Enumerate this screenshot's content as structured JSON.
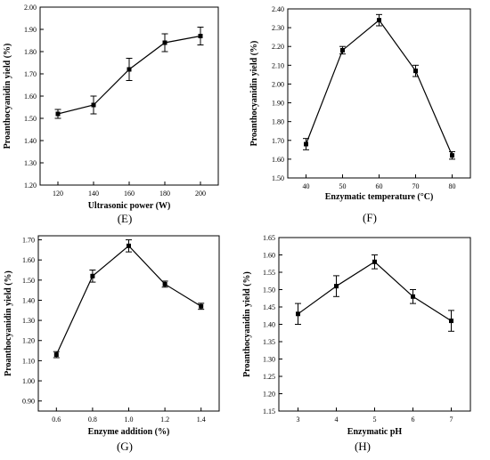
{
  "chart_data": [
    {
      "type": "line",
      "panel_label": "(E)",
      "xlabel": "Ultrasonic power (W)",
      "ylabel": "Proanthocyanidin yield (%)",
      "x": [
        120,
        140,
        160,
        180,
        200
      ],
      "y": [
        1.52,
        1.56,
        1.72,
        1.84,
        1.87
      ],
      "error": [
        0.02,
        0.04,
        0.05,
        0.04,
        0.04
      ],
      "xlim": [
        110,
        210
      ],
      "ylim": [
        1.2,
        2.0
      ],
      "x_ticks": [
        120,
        140,
        160,
        180,
        200
      ],
      "y_ticks": [
        1.2,
        1.3,
        1.4,
        1.5,
        1.6,
        1.7,
        1.8,
        1.9,
        2.0
      ],
      "grid": false,
      "marker": "square"
    },
    {
      "type": "line",
      "panel_label": "(F)",
      "xlabel": "Enzymatic temperature (°C)",
      "ylabel": "Proanthocyanidin yield (%)",
      "x": [
        40,
        50,
        60,
        70,
        80
      ],
      "y": [
        1.68,
        2.18,
        2.34,
        2.07,
        1.62
      ],
      "error": [
        0.03,
        0.02,
        0.03,
        0.03,
        0.02
      ],
      "xlim": [
        35,
        85
      ],
      "ylim": [
        1.5,
        2.4
      ],
      "x_ticks": [
        40,
        50,
        60,
        70,
        80
      ],
      "y_ticks": [
        1.5,
        1.6,
        1.7,
        1.8,
        1.9,
        2.0,
        2.1,
        2.2,
        2.3,
        2.4
      ],
      "grid": false,
      "marker": "square"
    },
    {
      "type": "line",
      "panel_label": "(G)",
      "xlabel": "Enzyme addition (%)",
      "ylabel": "Proanthocyanidin yield (%)",
      "x": [
        0.6,
        0.8,
        1.0,
        1.2,
        1.4
      ],
      "y": [
        1.13,
        1.52,
        1.67,
        1.48,
        1.37
      ],
      "error": [
        0.015,
        0.03,
        0.03,
        0.015,
        0.015
      ],
      "xlim": [
        0.5,
        1.5
      ],
      "ylim": [
        0.85,
        1.72
      ],
      "x_ticks": [
        0.6,
        0.8,
        1.0,
        1.2,
        1.4
      ],
      "y_ticks": [
        0.9,
        1.0,
        1.1,
        1.2,
        1.3,
        1.4,
        1.5,
        1.6,
        1.7
      ],
      "grid": false,
      "marker": "square"
    },
    {
      "type": "line",
      "panel_label": "(H)",
      "xlabel": "Enzymatic pH",
      "ylabel": "Proanthocyanidin yield (%)",
      "x": [
        3,
        4,
        5,
        6,
        7
      ],
      "y": [
        1.43,
        1.51,
        1.58,
        1.48,
        1.41
      ],
      "error": [
        0.03,
        0.03,
        0.02,
        0.02,
        0.03
      ],
      "xlim": [
        2.5,
        7.5
      ],
      "ylim": [
        1.15,
        1.65
      ],
      "x_ticks": [
        3,
        4,
        5,
        6,
        7
      ],
      "y_ticks": [
        1.15,
        1.2,
        1.25,
        1.3,
        1.35,
        1.4,
        1.45,
        1.5,
        1.55,
        1.6,
        1.65
      ],
      "grid": false,
      "marker": "square"
    }
  ],
  "colors": {
    "line": "#000000",
    "marker": "#000000",
    "axis": "#000000"
  }
}
